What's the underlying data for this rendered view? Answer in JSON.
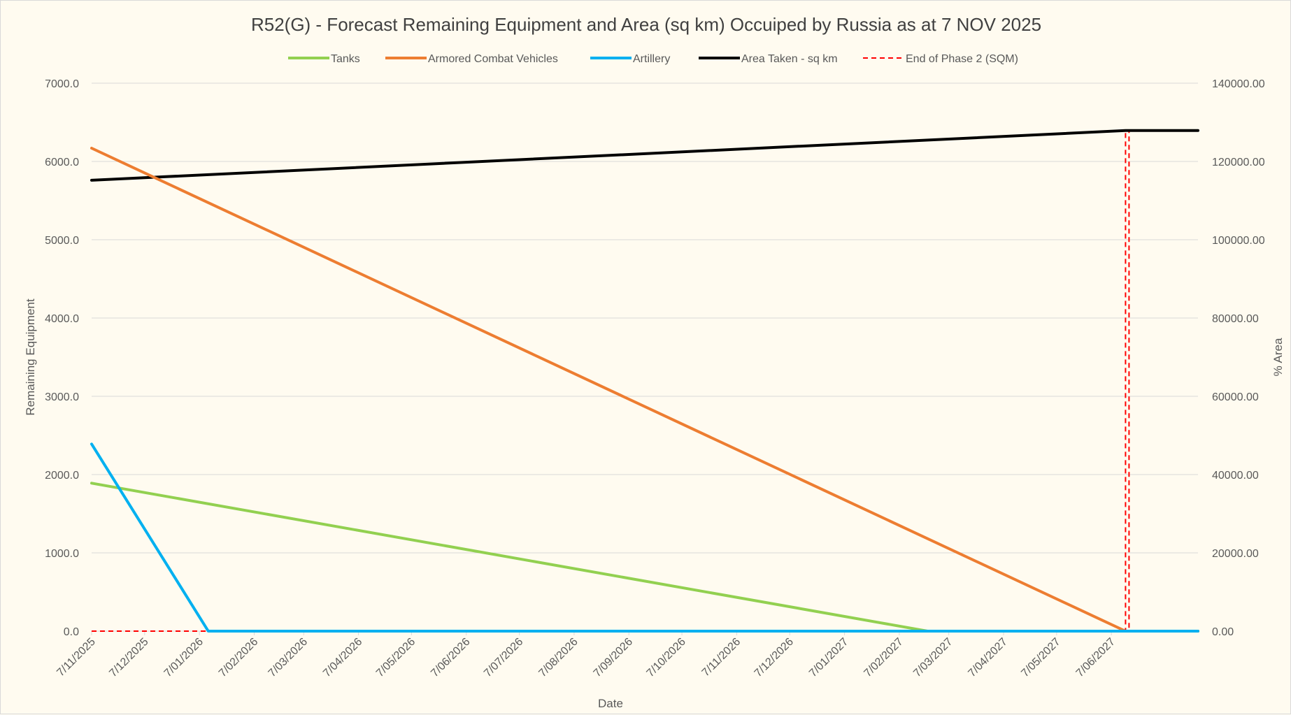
{
  "chart_data": {
    "type": "line",
    "title": "R52(G) - Forecast Remaining Equipment and Area (sq km) Occuiped by Russia as at 7 NOV 2025",
    "xlabel": "Date",
    "ylabel": "Remaining Equipment",
    "y2label": "% Area",
    "ylim": [
      0,
      7000
    ],
    "y2lim": [
      0,
      140000
    ],
    "yticks": [
      "0.0",
      "1000.0",
      "2000.0",
      "3000.0",
      "4000.0",
      "5000.0",
      "6000.0",
      "7000.0"
    ],
    "y2ticks": [
      "0.00",
      "20000.00",
      "40000.00",
      "60000.00",
      "80000.00",
      "100000.00",
      "120000.00",
      "140000.00"
    ],
    "xticks": [
      "7/11/2025",
      "7/12/2025",
      "7/01/2026",
      "7/02/2026",
      "7/03/2026",
      "7/04/2026",
      "7/05/2026",
      "7/06/2026",
      "7/07/2026",
      "7/08/2026",
      "7/09/2026",
      "7/10/2026",
      "7/11/2026",
      "7/12/2026",
      "7/01/2027",
      "7/02/2027",
      "7/03/2027",
      "7/04/2027",
      "7/05/2027",
      "7/06/2027"
    ],
    "x_range": [
      "2025-11-07",
      "2027-07-26"
    ],
    "grid": true,
    "legend_position": "top",
    "series": [
      {
        "name": "Tanks",
        "axis": "left",
        "color": "#92d050",
        "style": "solid",
        "points": [
          [
            "2025-11-07",
            1890
          ],
          [
            "2027-02-23",
            0
          ],
          [
            "2027-07-26",
            0
          ]
        ]
      },
      {
        "name": "Armored Combat Vehicles",
        "axis": "left",
        "color": "#ed7d31",
        "style": "solid",
        "points": [
          [
            "2025-11-07",
            6170
          ],
          [
            "2027-06-15",
            0
          ],
          [
            "2027-07-26",
            0
          ]
        ]
      },
      {
        "name": "Artillery",
        "axis": "left",
        "color": "#00b0f0",
        "style": "solid",
        "points": [
          [
            "2025-11-07",
            2390
          ],
          [
            "2026-01-12",
            0
          ],
          [
            "2027-07-26",
            0
          ]
        ]
      },
      {
        "name": "Area Taken - sq km",
        "axis": "right",
        "color": "#000000",
        "style": "solid",
        "points": [
          [
            "2025-11-07",
            115200
          ],
          [
            "2027-06-15",
            127900
          ],
          [
            "2027-07-26",
            127900
          ]
        ]
      },
      {
        "name": "End of Phase 2 (SQM)",
        "axis": "right",
        "color": "#ff0000",
        "style": "dashed",
        "points": [
          [
            "2025-11-07",
            0
          ],
          [
            "2027-06-15",
            0
          ],
          [
            "2027-06-15",
            127900
          ],
          [
            "2027-06-17",
            127900
          ],
          [
            "2027-06-17",
            0
          ]
        ]
      }
    ]
  }
}
